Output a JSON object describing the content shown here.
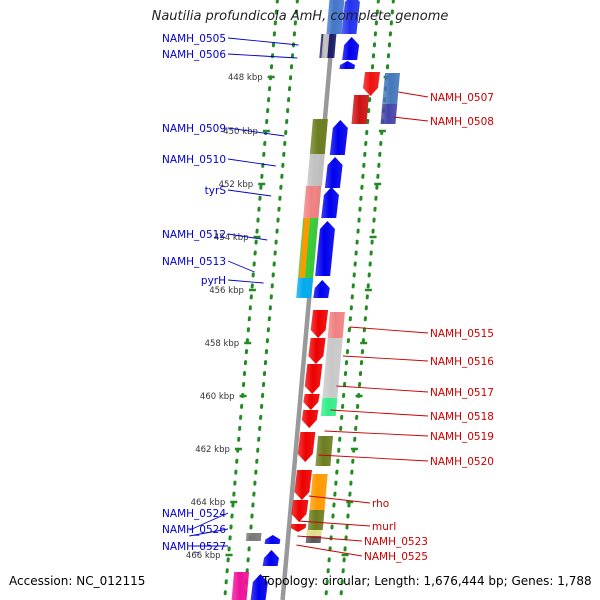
{
  "title": "Nautilia profundicola AmH, complete genome",
  "footer": {
    "accession": "Accession: NC_012115",
    "topology": "Topology: circular; Length: 1,676,444 bp; Genes: 1,788"
  },
  "colors": {
    "left_label": "#0000cc",
    "right_label": "#cc0000",
    "tick": "#228b22",
    "backbone": "#999999"
  },
  "ticks": [
    {
      "label": "448 kbp"
    },
    {
      "label": "450 kbp"
    },
    {
      "label": "452 kbp"
    },
    {
      "label": "454 kbp"
    },
    {
      "label": "456 kbp"
    },
    {
      "label": "458 kbp"
    },
    {
      "label": "460 kbp"
    },
    {
      "label": "462 kbp"
    },
    {
      "label": "464 kbp"
    },
    {
      "label": "466 kbp"
    }
  ],
  "left_labels": [
    "NAMH_0505",
    "NAMH_0506",
    "NAMH_0509",
    "NAMH_0510",
    "tyrS",
    "NAMH_0512",
    "NAMH_0513",
    "pyrH",
    "NAMH_0524",
    "NAMH_0526",
    "NAMH_0527"
  ],
  "right_labels": [
    "NAMH_0507",
    "NAMH_0508",
    "NAMH_0515",
    "NAMH_0516",
    "NAMH_0517",
    "NAMH_0518",
    "NAMH_0519",
    "NAMH_0520",
    "rho",
    "murI",
    "NAMH_0523",
    "NAMH_0525"
  ]
}
